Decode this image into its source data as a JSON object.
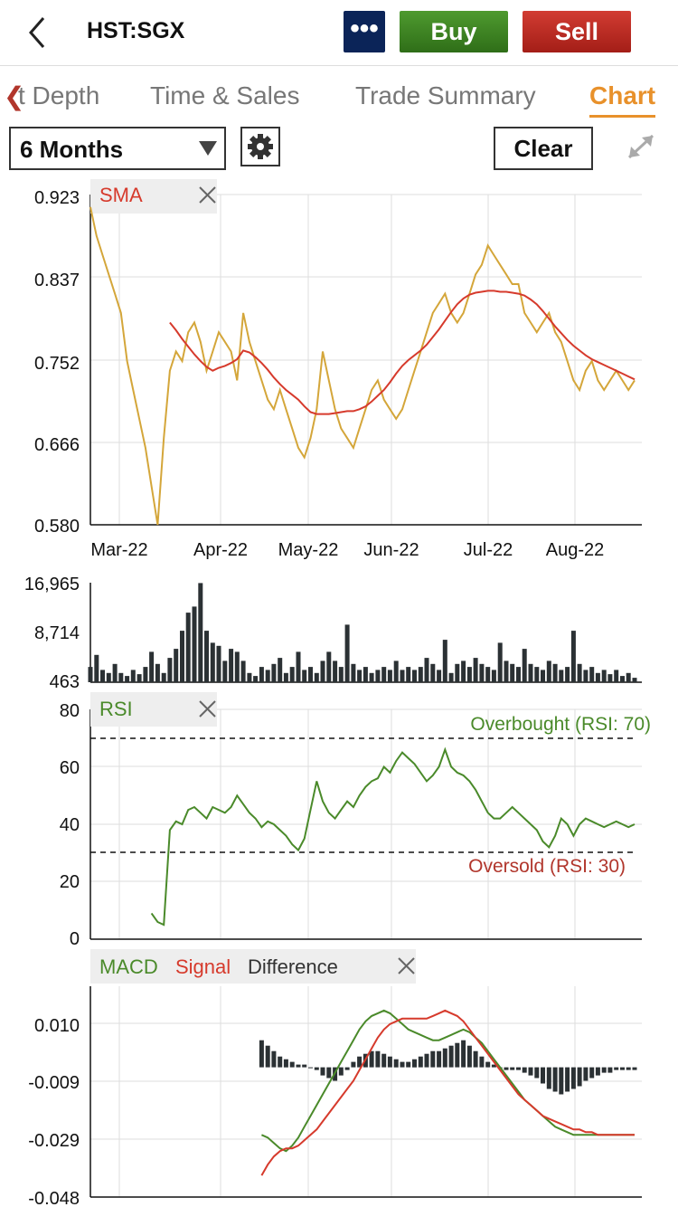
{
  "header": {
    "symbol": "HST:SGX",
    "more_label": "•••",
    "buy_label": "Buy",
    "sell_label": "Sell"
  },
  "tabs": [
    {
      "label": "t Depth"
    },
    {
      "label": "Time & Sales"
    },
    {
      "label": "Trade Summary"
    },
    {
      "label": "Chart",
      "active": true
    }
  ],
  "toolbar": {
    "range_label": "6 Months",
    "clear_label": "Clear"
  },
  "colors": {
    "price": "#d4a63a",
    "sma": "#d63a2c",
    "rsi": "#4a8a2a",
    "macd": "#4a8a2a",
    "signal": "#d63a2c",
    "difference": "#2b3134",
    "volume": "#2b3134"
  },
  "chart_data": [
    {
      "type": "line",
      "name": "price",
      "legend": [
        "SMA"
      ],
      "yticks": [
        "0.923",
        "0.837",
        "0.752",
        "0.666",
        "0.580"
      ],
      "ylim": [
        0.58,
        0.923
      ],
      "xticks": [
        "Mar-22",
        "Apr-22",
        "May-22",
        "Jun-22",
        "Jul-22",
        "Aug-22"
      ],
      "series": [
        {
          "name": "Price",
          "values": [
            0.91,
            0.88,
            0.86,
            0.84,
            0.82,
            0.8,
            0.75,
            0.72,
            0.69,
            0.66,
            0.62,
            0.58,
            0.67,
            0.74,
            0.76,
            0.75,
            0.78,
            0.79,
            0.77,
            0.74,
            0.76,
            0.78,
            0.77,
            0.76,
            0.73,
            0.8,
            0.77,
            0.75,
            0.73,
            0.71,
            0.7,
            0.72,
            0.7,
            0.68,
            0.66,
            0.65,
            0.67,
            0.7,
            0.76,
            0.73,
            0.7,
            0.68,
            0.67,
            0.66,
            0.68,
            0.7,
            0.72,
            0.73,
            0.71,
            0.7,
            0.69,
            0.7,
            0.72,
            0.74,
            0.76,
            0.78,
            0.8,
            0.81,
            0.82,
            0.8,
            0.79,
            0.8,
            0.82,
            0.84,
            0.85,
            0.87,
            0.86,
            0.85,
            0.84,
            0.83,
            0.83,
            0.8,
            0.79,
            0.78,
            0.79,
            0.8,
            0.78,
            0.77,
            0.75,
            0.73,
            0.72,
            0.74,
            0.75,
            0.73,
            0.72,
            0.73,
            0.74,
            0.73,
            0.72,
            0.73
          ]
        },
        {
          "name": "SMA",
          "values": [
            null,
            null,
            null,
            null,
            null,
            null,
            null,
            null,
            null,
            null,
            null,
            null,
            null,
            0.79,
            0.782,
            0.773,
            0.765,
            0.757,
            0.75,
            0.744,
            0.74,
            0.743,
            0.745,
            0.748,
            0.752,
            0.761,
            0.759,
            0.754,
            0.748,
            0.741,
            0.733,
            0.726,
            0.72,
            0.715,
            0.71,
            0.703,
            0.697,
            0.695,
            0.695,
            0.695,
            0.696,
            0.697,
            0.698,
            0.698,
            0.7,
            0.703,
            0.708,
            0.714,
            0.72,
            0.728,
            0.737,
            0.745,
            0.751,
            0.756,
            0.761,
            0.767,
            0.775,
            0.783,
            0.792,
            0.801,
            0.809,
            0.815,
            0.819,
            0.821,
            0.822,
            0.823,
            0.823,
            0.822,
            0.822,
            0.821,
            0.82,
            0.818,
            0.814,
            0.809,
            0.802,
            0.794,
            0.786,
            0.779,
            0.772,
            0.766,
            0.761,
            0.756,
            0.752,
            0.749,
            0.746,
            0.743,
            0.74,
            0.737,
            0.734,
            0.731
          ]
        }
      ]
    },
    {
      "type": "bar",
      "name": "volume",
      "yticks": [
        "16,965",
        "8,714",
        "463"
      ],
      "ylim": [
        463,
        16965
      ],
      "values": [
        3000,
        5000,
        2500,
        2000,
        3500,
        2000,
        1500,
        2500,
        1800,
        3000,
        5500,
        3500,
        2000,
        4500,
        6000,
        9000,
        12000,
        13000,
        16900,
        9000,
        7000,
        6500,
        4000,
        6000,
        5500,
        4000,
        2000,
        1500,
        3000,
        2500,
        3500,
        4500,
        2000,
        3000,
        5500,
        2500,
        3000,
        2000,
        4000,
        5500,
        4000,
        3000,
        10000,
        3500,
        2500,
        3000,
        2000,
        2500,
        3000,
        2500,
        4000,
        2500,
        3000,
        2500,
        3000,
        4500,
        3500,
        2500,
        7500,
        2000,
        3500,
        4000,
        3000,
        4500,
        3500,
        3000,
        2500,
        7000,
        4000,
        3500,
        3000,
        6000,
        3500,
        3000,
        2500,
        4000,
        3500,
        2500,
        3000,
        9000,
        3500,
        2500,
        3000,
        2000,
        2500,
        1800,
        2500,
        1500,
        2000,
        1200
      ]
    },
    {
      "type": "line",
      "name": "rsi",
      "legend": [
        "RSI"
      ],
      "yticks": [
        "80",
        "60",
        "40",
        "20",
        "0"
      ],
      "ylim": [
        0,
        80
      ],
      "annotations": [
        {
          "label": "Overbought (RSI: 70)",
          "y": 70
        },
        {
          "label": "Oversold (RSI: 30)",
          "y": 30
        }
      ],
      "series": [
        {
          "name": "RSI",
          "values": [
            null,
            null,
            null,
            null,
            null,
            null,
            null,
            null,
            null,
            null,
            9,
            6,
            5,
            38,
            41,
            40,
            45,
            46,
            44,
            42,
            46,
            45,
            44,
            46,
            50,
            47,
            44,
            42,
            39,
            41,
            40,
            38,
            36,
            33,
            31,
            35,
            45,
            55,
            48,
            44,
            42,
            45,
            48,
            46,
            50,
            53,
            55,
            56,
            60,
            58,
            62,
            65,
            63,
            61,
            58,
            55,
            57,
            60,
            66,
            60,
            58,
            57,
            55,
            52,
            48,
            44,
            42,
            42,
            44,
            46,
            44,
            42,
            40,
            38,
            34,
            32,
            36,
            42,
            40,
            36,
            40,
            42,
            41,
            40,
            39,
            40,
            41,
            40,
            39,
            40
          ]
        }
      ]
    },
    {
      "type": "line",
      "name": "macd",
      "legend": [
        "MACD",
        "Signal",
        "Difference"
      ],
      "yticks": [
        "0.010",
        "-0.009",
        "-0.029",
        "-0.048"
      ],
      "ylim": [
        -0.048,
        0.03
      ],
      "series": [
        {
          "name": "MACD",
          "values": [
            null,
            null,
            null,
            null,
            null,
            null,
            null,
            null,
            null,
            null,
            null,
            null,
            null,
            null,
            null,
            null,
            null,
            null,
            null,
            null,
            null,
            null,
            null,
            null,
            null,
            null,
            null,
            null,
            -0.025,
            -0.026,
            -0.028,
            -0.03,
            -0.031,
            -0.029,
            -0.026,
            -0.022,
            -0.018,
            -0.014,
            -0.01,
            -0.006,
            -0.002,
            0.002,
            0.006,
            0.01,
            0.014,
            0.017,
            0.019,
            0.02,
            0.021,
            0.02,
            0.018,
            0.016,
            0.014,
            0.013,
            0.012,
            0.011,
            0.01,
            0.01,
            0.011,
            0.012,
            0.013,
            0.014,
            0.013,
            0.011,
            0.009,
            0.006,
            0.003,
            0.0,
            -0.003,
            -0.006,
            -0.009,
            -0.012,
            -0.014,
            -0.016,
            -0.018,
            -0.02,
            -0.022,
            -0.023,
            -0.024,
            -0.025,
            -0.025,
            -0.025,
            -0.025,
            -0.025,
            -0.025,
            -0.025,
            -0.025,
            -0.025,
            -0.025,
            -0.025
          ]
        },
        {
          "name": "Signal",
          "values": [
            null,
            null,
            null,
            null,
            null,
            null,
            null,
            null,
            null,
            null,
            null,
            null,
            null,
            null,
            null,
            null,
            null,
            null,
            null,
            null,
            null,
            null,
            null,
            null,
            null,
            null,
            null,
            null,
            -0.04,
            -0.036,
            -0.033,
            -0.031,
            -0.03,
            -0.03,
            -0.029,
            -0.027,
            -0.025,
            -0.023,
            -0.02,
            -0.017,
            -0.014,
            -0.011,
            -0.008,
            -0.005,
            -0.001,
            0.003,
            0.007,
            0.011,
            0.014,
            0.016,
            0.017,
            0.018,
            0.018,
            0.018,
            0.018,
            0.018,
            0.019,
            0.02,
            0.021,
            0.02,
            0.019,
            0.017,
            0.014,
            0.011,
            0.008,
            0.005,
            0.002,
            -0.001,
            -0.004,
            -0.007,
            -0.01,
            -0.012,
            -0.014,
            -0.016,
            -0.018,
            -0.019,
            -0.02,
            -0.021,
            -0.022,
            -0.023,
            -0.023,
            -0.024,
            -0.024,
            -0.025,
            -0.025,
            -0.025,
            -0.025,
            -0.025,
            -0.025,
            -0.025
          ]
        },
        {
          "name": "Difference",
          "values": [
            null,
            null,
            null,
            null,
            null,
            null,
            null,
            null,
            null,
            null,
            null,
            null,
            null,
            null,
            null,
            null,
            null,
            null,
            null,
            null,
            null,
            null,
            null,
            null,
            null,
            null,
            null,
            null,
            0.01,
            0.008,
            0.006,
            0.004,
            0.003,
            0.002,
            0.001,
            0.001,
            0.0,
            -0.001,
            -0.003,
            -0.004,
            -0.005,
            -0.003,
            -0.001,
            0.002,
            0.004,
            0.005,
            0.006,
            0.006,
            0.005,
            0.004,
            0.003,
            0.002,
            0.002,
            0.003,
            0.004,
            0.005,
            0.006,
            0.006,
            0.007,
            0.008,
            0.009,
            0.01,
            0.008,
            0.006,
            0.004,
            0.002,
            0.001,
            0.0,
            -0.001,
            -0.001,
            -0.001,
            -0.002,
            -0.003,
            -0.004,
            -0.006,
            -0.008,
            -0.009,
            -0.01,
            -0.009,
            -0.008,
            -0.007,
            -0.005,
            -0.004,
            -0.003,
            -0.002,
            -0.002,
            -0.001,
            -0.001,
            -0.001,
            -0.001
          ]
        }
      ]
    }
  ]
}
